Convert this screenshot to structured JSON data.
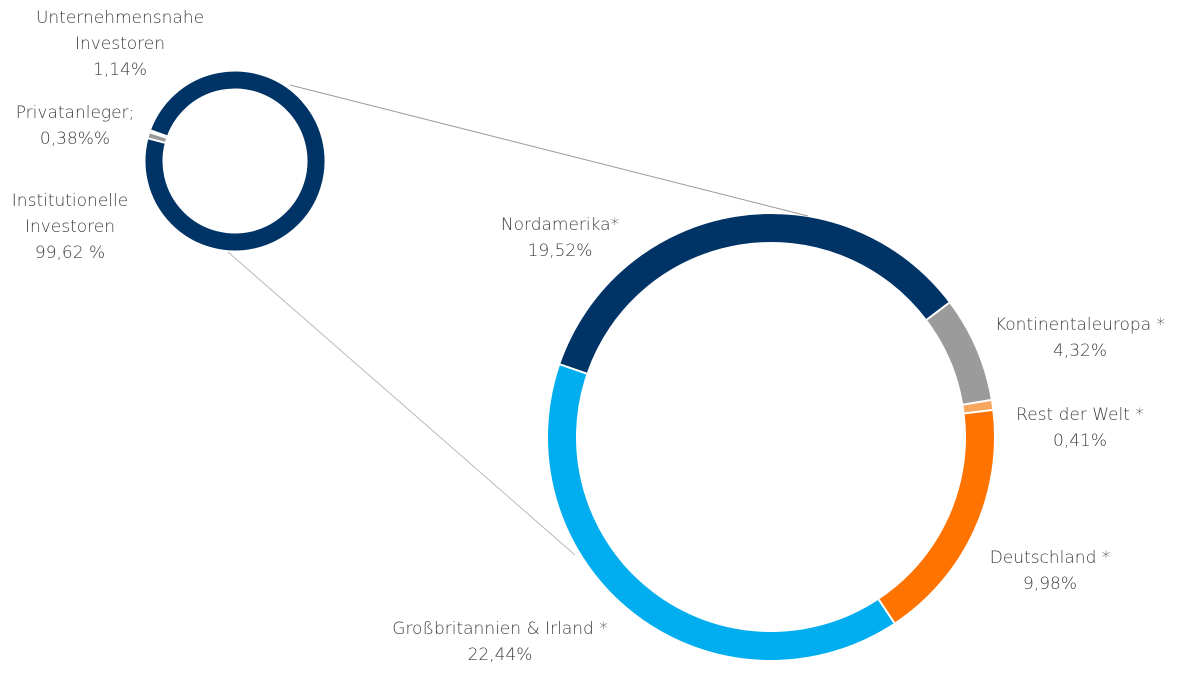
{
  "chart_data": [
    {
      "type": "donut",
      "categories": [
        "Institutionelle Investoren",
        "Unternehmensnahe Investoren",
        "Privatanleger;"
      ],
      "values": [
        99.62,
        1.14,
        0.38
      ],
      "value_labels": [
        "99,62 %",
        "1,14%",
        "0,38%%"
      ],
      "colors": [
        "#003366",
        "#9b9b9b",
        "#5b9bd5"
      ]
    },
    {
      "type": "donut",
      "categories": [
        "Nordamerika*",
        "Kontinentaleuropa *",
        "Rest der Welt *",
        "Deutschland *",
        "Großbritannien & Irland *"
      ],
      "values": [
        19.52,
        4.32,
        0.41,
        9.98,
        22.44
      ],
      "value_labels": [
        "19,52%",
        "4,32%",
        "0,41%",
        "9,98%",
        "22,44%"
      ],
      "colors": [
        "#003366",
        "#9b9b9b",
        "#f9a75f",
        "#ff7300",
        "#00aeef"
      ]
    }
  ]
}
